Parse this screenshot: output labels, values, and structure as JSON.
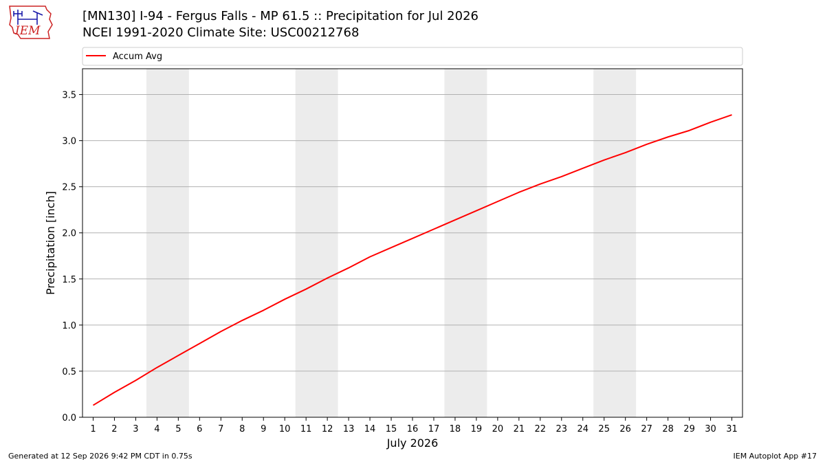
{
  "header": {
    "title_line1": "[MN130] I-94 - Fergus Falls - MP 61.5  :: Precipitation for Jul 2026",
    "title_line2": "NCEI 1991-2020 Climate Site: USC00212768",
    "logo_text": "IEM"
  },
  "footer": {
    "generated": "Generated at 12 Sep 2026 9:42 PM CDT in 0.75s",
    "app": "IEM Autoplot App #17"
  },
  "colors": {
    "accum_avg": "#ff0000",
    "weekend_band": "#ececec",
    "grid": "#b0b0b0",
    "logo_red": "#cc2222",
    "logo_blue": "#1a1aaa"
  },
  "chart_data": {
    "type": "line",
    "xlabel": "July 2026",
    "ylabel": "Precipitation [inch]",
    "xlim": [
      0.5,
      31.5
    ],
    "ylim": [
      0,
      3.78
    ],
    "x_ticks": [
      1,
      2,
      3,
      4,
      5,
      6,
      7,
      8,
      9,
      10,
      11,
      12,
      13,
      14,
      15,
      16,
      17,
      18,
      19,
      20,
      21,
      22,
      23,
      24,
      25,
      26,
      27,
      28,
      29,
      30,
      31
    ],
    "y_ticks": [
      0.0,
      0.5,
      1.0,
      1.5,
      2.0,
      2.5,
      3.0,
      3.5
    ],
    "y_tick_labels": [
      "0.0",
      "0.5",
      "1.0",
      "1.5",
      "2.0",
      "2.5",
      "3.0",
      "3.5"
    ],
    "grid": "horizontal",
    "legend_placement": "top, above plot",
    "weekend_bands": [
      [
        3.5,
        5.5
      ],
      [
        10.5,
        12.5
      ],
      [
        17.5,
        19.5
      ],
      [
        24.5,
        26.5
      ]
    ],
    "series": [
      {
        "name": "Accum Avg",
        "x": [
          1,
          2,
          3,
          4,
          5,
          6,
          7,
          8,
          9,
          10,
          11,
          12,
          13,
          14,
          15,
          16,
          17,
          18,
          19,
          20,
          21,
          22,
          23,
          24,
          25,
          26,
          27,
          28,
          29,
          30,
          31
        ],
        "values": [
          0.13,
          0.27,
          0.4,
          0.54,
          0.67,
          0.8,
          0.93,
          1.05,
          1.16,
          1.28,
          1.39,
          1.51,
          1.62,
          1.74,
          1.84,
          1.94,
          2.04,
          2.14,
          2.24,
          2.34,
          2.44,
          2.53,
          2.61,
          2.7,
          2.79,
          2.87,
          2.96,
          3.04,
          3.11,
          3.2,
          3.28
        ]
      }
    ]
  }
}
